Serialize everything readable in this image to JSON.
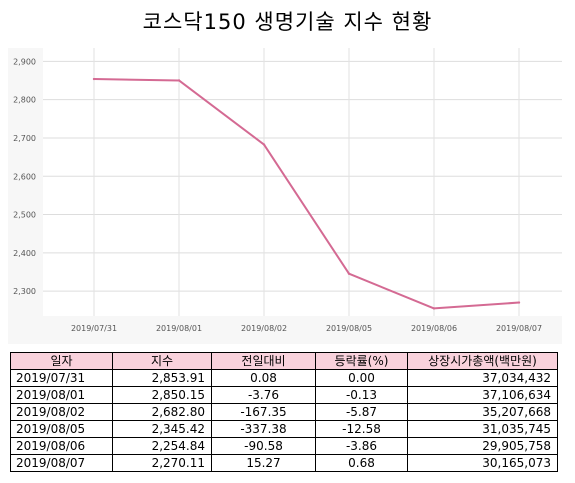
{
  "title": "코스닥150 생명기술 지수 현황",
  "chart_data": {
    "type": "line",
    "x": [
      "2019/07/31",
      "2019/08/01",
      "2019/08/02",
      "2019/08/05",
      "2019/08/06",
      "2019/08/07"
    ],
    "values": [
      2853.91,
      2850.15,
      2682.8,
      2345.42,
      2254.84,
      2270.11
    ],
    "yticks": [
      "2,900",
      "2,800",
      "2,700",
      "2,600",
      "2,500",
      "2,400",
      "2,300"
    ],
    "ytick_values": [
      2900,
      2800,
      2700,
      2600,
      2500,
      2400,
      2300
    ],
    "ylim": [
      2235,
      2935
    ],
    "line_color": "#d46a93",
    "grid": true
  },
  "table": {
    "headers": [
      "일자",
      "지수",
      "전일대비",
      "등락률(%)",
      "상장시가총액(백만원)"
    ],
    "rows": [
      [
        "2019/07/31",
        "2,853.91",
        "0.08",
        "0.00",
        "37,034,432"
      ],
      [
        "2019/08/01",
        "2,850.15",
        "-3.76",
        "-0.13",
        "37,106,634"
      ],
      [
        "2019/08/02",
        "2,682.80",
        "-167.35",
        "-5.87",
        "35,207,668"
      ],
      [
        "2019/08/05",
        "2,345.42",
        "-337.38",
        "-12.58",
        "31,035,745"
      ],
      [
        "2019/08/06",
        "2,254.84",
        "-90.58",
        "-3.86",
        "29,905,758"
      ],
      [
        "2019/08/07",
        "2,270.11",
        "15.27",
        "0.68",
        "30,165,073"
      ]
    ],
    "header_bg": "#f9d2dc"
  }
}
